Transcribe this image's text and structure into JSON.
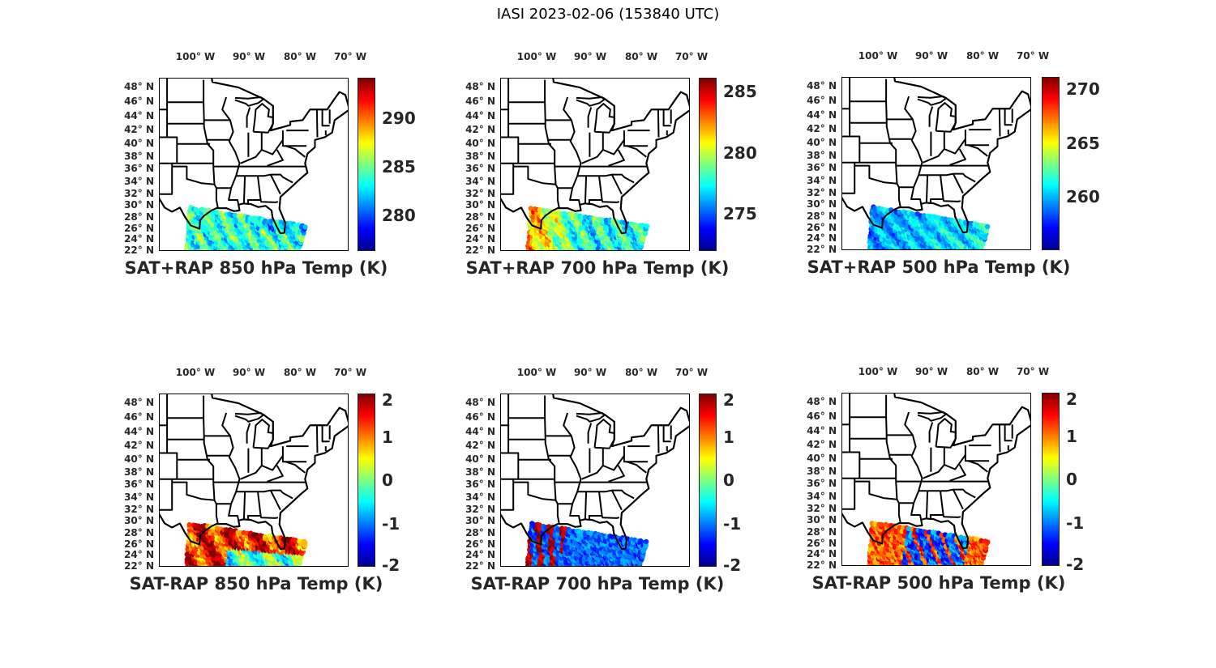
{
  "figure_title": "IASI 2023-02-06 (153840 UTC)",
  "lon_labels": [
    "100° W",
    "90° W",
    "80° W",
    "70° W"
  ],
  "lat_labels": [
    "48° N",
    "46° N",
    "44° N",
    "42° N",
    "40° N",
    "38° N",
    "36° N",
    "34° N",
    "32° N",
    "30° N",
    "28° N",
    "26° N",
    "24° N",
    "22° N"
  ],
  "colormap": "jet",
  "panels": [
    {
      "title": "SAT+RAP 850 hPa Temp (K)",
      "clim": [
        276.3,
        294.2
      ],
      "ticks": [
        "280",
        "285",
        "290"
      ],
      "tick_values": [
        280,
        285,
        290
      ]
    },
    {
      "title": "SAT+RAP 700 hPa Temp (K)",
      "clim": [
        272.0,
        286.1
      ],
      "ticks": [
        "275",
        "280",
        "285"
      ],
      "tick_values": [
        275,
        280,
        285
      ]
    },
    {
      "title": "SAT+RAP 500 hPa Temp (K)",
      "clim": [
        255.1,
        271.1
      ],
      "ticks": [
        "260",
        "265",
        "270"
      ],
      "tick_values": [
        260,
        265,
        270
      ]
    },
    {
      "title": "SAT-RAP 850 hPa Temp (K)",
      "clim": [
        -2,
        2
      ],
      "ticks": [
        "-2",
        "-1",
        "0",
        "1",
        "2"
      ],
      "tick_values": [
        -2,
        -1,
        0,
        1,
        2
      ]
    },
    {
      "title": "SAT-RAP 700 hPa Temp (K)",
      "clim": [
        -2,
        2
      ],
      "ticks": [
        "-2",
        "-1",
        "0",
        "1",
        "2"
      ],
      "tick_values": [
        -2,
        -1,
        0,
        1,
        2
      ]
    },
    {
      "title": "SAT-RAP 500 hPa Temp (K)",
      "clim": [
        -2,
        2
      ],
      "ticks": [
        "-2",
        "-1",
        "0",
        "1",
        "2"
      ],
      "tick_values": [
        -2,
        -1,
        0,
        1,
        2
      ]
    }
  ]
}
